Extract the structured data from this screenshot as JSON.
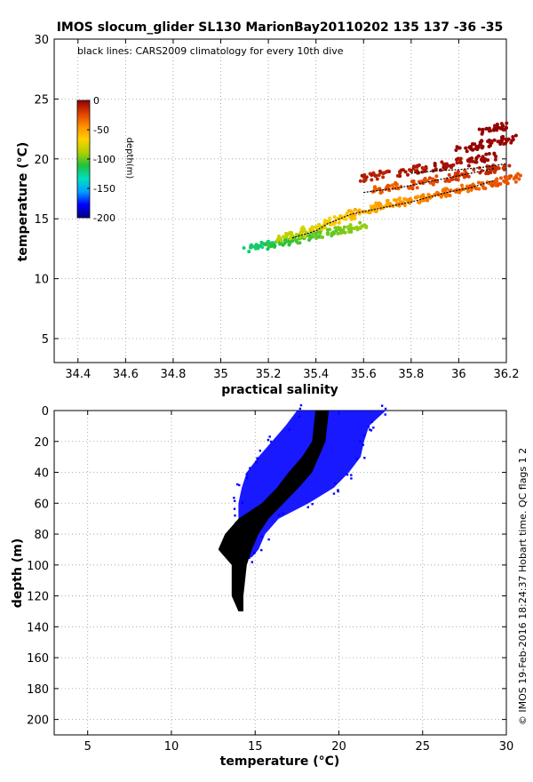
{
  "figure": {
    "title": "IMOS slocum_glider SL130 MarionBay20110202 135  137  -36  -35",
    "credit": "© IMOS 19-Feb-2016 18:24:37 Hobart time. QC flags 1  2"
  },
  "chart_data": [
    {
      "type": "scatter",
      "note": "black lines: CARS2009 climatology for every 10th dive",
      "xlabel": "practical salinity",
      "ylabel": "temperature (°C)",
      "xlim": [
        34.3,
        36.2
      ],
      "ylim": [
        3,
        30
      ],
      "xticks": [
        "34.4",
        "34.6",
        "34.8",
        "35",
        "35.2",
        "35.4",
        "35.6",
        "35.8",
        "36",
        "36.2"
      ],
      "xtick_values": [
        34.4,
        34.6,
        34.8,
        35.0,
        35.2,
        35.4,
        35.6,
        35.8,
        36.0,
        36.2
      ],
      "yticks": [
        "5",
        "10",
        "15",
        "20",
        "25",
        "30"
      ],
      "ytick_values": [
        5,
        10,
        15,
        20,
        25,
        30
      ],
      "grid": true,
      "colorbar": {
        "label": "depth(m)",
        "ticks": [
          "0",
          "-50",
          "-100",
          "-150",
          "-200"
        ],
        "tick_values": [
          0,
          -50,
          -100,
          -150,
          -200
        ],
        "range": [
          -200,
          0
        ],
        "colormap": [
          "#000080",
          "#0000ff",
          "#00a0ff",
          "#00e0c0",
          "#20c040",
          "#b0d000",
          "#ffd000",
          "#ff9000",
          "#e04000",
          "#900000"
        ],
        "placement": "upper-left"
      },
      "series": [
        {
          "points": [
            {
              "x": 35.16,
              "y": 12.7,
              "depth": -120
            },
            {
              "x": 35.25,
              "y": 13.0,
              "depth": -110
            },
            {
              "x": 35.35,
              "y": 13.4,
              "depth": -105
            },
            {
              "x": 35.45,
              "y": 13.8,
              "depth": -100
            },
            {
              "x": 35.55,
              "y": 14.2,
              "depth": -95
            },
            {
              "x": 35.3,
              "y": 13.6,
              "depth": -85
            },
            {
              "x": 35.4,
              "y": 14.3,
              "depth": -75
            },
            {
              "x": 35.5,
              "y": 15.0,
              "depth": -65
            },
            {
              "x": 35.6,
              "y": 15.6,
              "depth": -55
            },
            {
              "x": 35.7,
              "y": 16.2,
              "depth": -50
            },
            {
              "x": 35.8,
              "y": 16.5,
              "depth": -45
            },
            {
              "x": 35.9,
              "y": 17.0,
              "depth": -40
            },
            {
              "x": 36.0,
              "y": 17.4,
              "depth": -35
            },
            {
              "x": 36.1,
              "y": 17.8,
              "depth": -30
            },
            {
              "x": 36.2,
              "y": 18.2,
              "depth": -28
            },
            {
              "x": 35.7,
              "y": 17.6,
              "depth": -30
            },
            {
              "x": 35.85,
              "y": 18.0,
              "depth": -25
            },
            {
              "x": 36.0,
              "y": 18.6,
              "depth": -20
            },
            {
              "x": 36.15,
              "y": 19.2,
              "depth": -15
            },
            {
              "x": 35.65,
              "y": 18.6,
              "depth": -10
            },
            {
              "x": 35.8,
              "y": 19.0,
              "depth": -8
            },
            {
              "x": 35.95,
              "y": 19.5,
              "depth": -5
            },
            {
              "x": 36.1,
              "y": 20.0,
              "depth": -3
            },
            {
              "x": 36.05,
              "y": 21.0,
              "depth": -2
            },
            {
              "x": 36.18,
              "y": 21.5,
              "depth": -1
            },
            {
              "x": 36.15,
              "y": 22.5,
              "depth": 0
            }
          ]
        }
      ],
      "climatology_lines": [
        {
          "points": [
            {
              "x": 35.3,
              "y": 13.4
            },
            {
              "x": 35.4,
              "y": 14.0
            },
            {
              "x": 35.45,
              "y": 14.6
            },
            {
              "x": 35.55,
              "y": 15.4
            },
            {
              "x": 35.65,
              "y": 15.8
            },
            {
              "x": 35.8,
              "y": 16.4
            },
            {
              "x": 35.95,
              "y": 17.2
            },
            {
              "x": 36.05,
              "y": 17.6
            },
            {
              "x": 36.15,
              "y": 18.2
            }
          ]
        },
        {
          "points": [
            {
              "x": 35.6,
              "y": 17.2
            },
            {
              "x": 35.75,
              "y": 17.6
            },
            {
              "x": 35.9,
              "y": 18.2
            },
            {
              "x": 36.05,
              "y": 18.8
            },
            {
              "x": 36.15,
              "y": 19.2
            }
          ]
        },
        {
          "points": [
            {
              "x": 35.8,
              "y": 18.8
            },
            {
              "x": 35.9,
              "y": 19.0
            },
            {
              "x": 36.0,
              "y": 19.1
            },
            {
              "x": 36.1,
              "y": 19.3
            },
            {
              "x": 36.2,
              "y": 19.6
            }
          ]
        }
      ]
    },
    {
      "type": "scatter",
      "xlabel": "temperature (°C)",
      "ylabel": "depth (m)",
      "xlim": [
        3,
        30
      ],
      "ylim": [
        0,
        210
      ],
      "y_reversed": true,
      "xticks": [
        "5",
        "10",
        "15",
        "20",
        "25",
        "30"
      ],
      "xtick_values": [
        5,
        10,
        15,
        20,
        25,
        30
      ],
      "yticks": [
        "0",
        "20",
        "40",
        "60",
        "80",
        "100",
        "120",
        "140",
        "160",
        "180",
        "200"
      ],
      "ytick_values": [
        0,
        20,
        40,
        60,
        80,
        100,
        120,
        140,
        160,
        180,
        200
      ],
      "grid": true,
      "series": [
        {
          "color": "#0000ff",
          "profile_envelope": [
            {
              "depth": 0,
              "tmin": 17.5,
              "tmax": 22.8
            },
            {
              "depth": 10,
              "tmin": 16.8,
              "tmax": 21.8
            },
            {
              "depth": 20,
              "tmin": 16.0,
              "tmax": 21.5
            },
            {
              "depth": 30,
              "tmin": 15.2,
              "tmax": 21.3
            },
            {
              "depth": 40,
              "tmin": 14.5,
              "tmax": 20.6
            },
            {
              "depth": 50,
              "tmin": 14.2,
              "tmax": 19.7
            },
            {
              "depth": 60,
              "tmin": 14.0,
              "tmax": 18.2
            },
            {
              "depth": 70,
              "tmin": 14.0,
              "tmax": 16.4
            },
            {
              "depth": 80,
              "tmin": 14.0,
              "tmax": 15.6
            },
            {
              "depth": 90,
              "tmin": 14.2,
              "tmax": 15.2
            },
            {
              "depth": 95,
              "tmin": 14.4,
              "tmax": 14.8
            }
          ]
        },
        {
          "color": "#000000",
          "name_note": "climatology",
          "profile_envelope": [
            {
              "depth": 0,
              "tmin": 18.6,
              "tmax": 19.4
            },
            {
              "depth": 10,
              "tmin": 18.5,
              "tmax": 19.3
            },
            {
              "depth": 20,
              "tmin": 18.4,
              "tmax": 19.2
            },
            {
              "depth": 30,
              "tmin": 17.8,
              "tmax": 18.8
            },
            {
              "depth": 40,
              "tmin": 17.0,
              "tmax": 18.4
            },
            {
              "depth": 50,
              "tmin": 16.3,
              "tmax": 17.6
            },
            {
              "depth": 60,
              "tmin": 15.4,
              "tmax": 16.7
            },
            {
              "depth": 70,
              "tmin": 14.0,
              "tmax": 15.8
            },
            {
              "depth": 80,
              "tmin": 13.2,
              "tmax": 15.2
            },
            {
              "depth": 90,
              "tmin": 12.8,
              "tmax": 14.8
            },
            {
              "depth": 100,
              "tmin": 13.6,
              "tmax": 14.5
            },
            {
              "depth": 110,
              "tmin": 13.6,
              "tmax": 14.4
            },
            {
              "depth": 120,
              "tmin": 13.6,
              "tmax": 14.3
            },
            {
              "depth": 125,
              "tmin": 13.8,
              "tmax": 14.3
            },
            {
              "depth": 130,
              "tmin": 14.0,
              "tmax": 14.3
            }
          ]
        }
      ]
    }
  ]
}
